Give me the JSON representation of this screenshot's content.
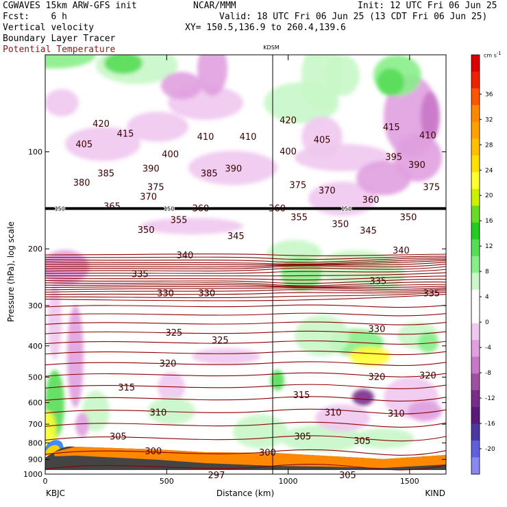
{
  "header": {
    "line1_left": "CGWAVES 15km ARW-GFS init",
    "line1_center": "NCAR/MMM",
    "line1_right": "Init: 12 UTC Fri 06 Jun 25",
    "line2_left": "Fcst:    6 h",
    "line2_right": "Valid: 18 UTC Fri 06 Jun 25 (13 CDT Fri 06 Jun 25)",
    "line3_left": "Vertical velocity",
    "line3_right": "XY= 150.5,136.9 to 260.4,139.6",
    "line4_left": "Boundary Layer Tracer",
    "line5_left": "Potential Temperature"
  },
  "chart_data": {
    "type": "heatmap",
    "xlabel": "Distance (km)",
    "ylabel": "Pressure (hPa), log scale",
    "xlim": [
      0,
      1650
    ],
    "ylim": [
      1000,
      50
    ],
    "log_y": true,
    "x_ticks": [
      0,
      500,
      1000,
      1500
    ],
    "y_ticks": [
      100,
      200,
      300,
      400,
      500,
      600,
      700,
      800,
      900,
      1000
    ],
    "endpoints": {
      "left": "KBJC",
      "right": "KIND"
    },
    "marker": {
      "label": "KDSM",
      "x": 932
    },
    "colorbar": {
      "unit": "cm s",
      "unit_sup": "-1",
      "ticks": [
        36,
        32,
        28,
        24,
        20,
        16,
        12,
        8,
        4,
        0,
        -4,
        -8,
        -12,
        -16,
        -20
      ],
      "colors": [
        "#dd0000",
        "#ee2200",
        "#ff5500",
        "#ff8800",
        "#ffa000",
        "#ffbe00",
        "#ffe000",
        "#ffff33",
        "#ccf000",
        "#66dd22",
        "#22cc22",
        "#55dd55",
        "#88ee88",
        "#c8f7c8",
        "#ffffff",
        "#ffffff",
        "#f0c8f0",
        "#e0a0e0",
        "#c878c8",
        "#a050a0",
        "#7a2c8a",
        "#5a1a7a",
        "#4a3aa0",
        "#6060dd",
        "#8888ee"
      ]
    },
    "theta_contours": {
      "labels": [
        {
          "v": "420",
          "x": 230,
          "p": 82
        },
        {
          "v": "420",
          "x": 1000,
          "p": 80
        },
        {
          "v": "415",
          "x": 330,
          "p": 88
        },
        {
          "v": "415",
          "x": 1425,
          "p": 84
        },
        {
          "v": "410",
          "x": 660,
          "p": 90
        },
        {
          "v": "410",
          "x": 835,
          "p": 90
        },
        {
          "v": "410",
          "x": 1575,
          "p": 89
        },
        {
          "v": "405",
          "x": 160,
          "p": 95
        },
        {
          "v": "405",
          "x": 1140,
          "p": 92
        },
        {
          "v": "400",
          "x": 515,
          "p": 102
        },
        {
          "v": "400",
          "x": 1000,
          "p": 100
        },
        {
          "v": "395",
          "x": 1435,
          "p": 104
        },
        {
          "v": "390",
          "x": 435,
          "p": 113
        },
        {
          "v": "390",
          "x": 775,
          "p": 113
        },
        {
          "v": "390",
          "x": 1530,
          "p": 110
        },
        {
          "v": "385",
          "x": 250,
          "p": 117
        },
        {
          "v": "385",
          "x": 675,
          "p": 117
        },
        {
          "v": "380",
          "x": 150,
          "p": 125
        },
        {
          "v": "375",
          "x": 455,
          "p": 129
        },
        {
          "v": "375",
          "x": 1040,
          "p": 127
        },
        {
          "v": "375",
          "x": 1590,
          "p": 129
        },
        {
          "v": "370",
          "x": 425,
          "p": 138
        },
        {
          "v": "370",
          "x": 1160,
          "p": 132
        },
        {
          "v": "365",
          "x": 275,
          "p": 148
        },
        {
          "v": "360",
          "x": 640,
          "p": 150
        },
        {
          "v": "360",
          "x": 955,
          "p": 150
        },
        {
          "v": "360",
          "x": 1340,
          "p": 141
        },
        {
          "v": "355",
          "x": 550,
          "p": 163
        },
        {
          "v": "355",
          "x": 1045,
          "p": 160
        },
        {
          "v": "350",
          "x": 415,
          "p": 175
        },
        {
          "v": "350",
          "x": 1215,
          "p": 168
        },
        {
          "v": "350",
          "x": 1495,
          "p": 160
        },
        {
          "v": "345",
          "x": 785,
          "p": 183
        },
        {
          "v": "345",
          "x": 1330,
          "p": 176
        },
        {
          "v": "340",
          "x": 575,
          "p": 210
        },
        {
          "v": "340",
          "x": 1465,
          "p": 203
        },
        {
          "v": "335",
          "x": 390,
          "p": 240
        },
        {
          "v": "335",
          "x": 1370,
          "p": 252
        },
        {
          "v": "335",
          "x": 1590,
          "p": 275
        },
        {
          "v": "330",
          "x": 495,
          "p": 275
        },
        {
          "v": "330",
          "x": 665,
          "p": 275
        },
        {
          "v": "330",
          "x": 1365,
          "p": 355
        },
        {
          "v": "325",
          "x": 530,
          "p": 365
        },
        {
          "v": "325",
          "x": 720,
          "p": 385
        },
        {
          "v": "320",
          "x": 505,
          "p": 455
        },
        {
          "v": "320",
          "x": 1365,
          "p": 500
        },
        {
          "v": "320",
          "x": 1575,
          "p": 495
        },
        {
          "v": "315",
          "x": 335,
          "p": 540
        },
        {
          "v": "315",
          "x": 1055,
          "p": 570
        },
        {
          "v": "310",
          "x": 465,
          "p": 645
        },
        {
          "v": "310",
          "x": 1185,
          "p": 645
        },
        {
          "v": "310",
          "x": 1445,
          "p": 650
        },
        {
          "v": "305",
          "x": 300,
          "p": 765
        },
        {
          "v": "305",
          "x": 1060,
          "p": 765
        },
        {
          "v": "305",
          "x": 1305,
          "p": 790
        },
        {
          "v": "300",
          "x": 445,
          "p": 850
        },
        {
          "v": "300",
          "x": 915,
          "p": 860
        },
        {
          "v": "297",
          "x": 705,
          "p": 1010
        },
        {
          "v": "305",
          "x": 1245,
          "p": 1010
        }
      ],
      "tracer_labels": [
        {
          "v": "150",
          "x": 60,
          "p": 150
        },
        {
          "v": "150",
          "x": 510,
          "p": 150
        },
        {
          "v": "150",
          "x": 1240,
          "p": 150
        }
      ]
    }
  }
}
